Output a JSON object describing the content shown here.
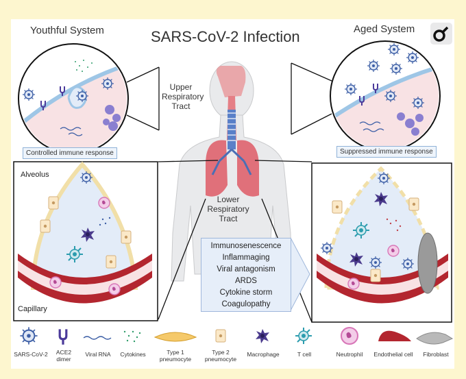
{
  "title": "SARS-CoV-2 Infection",
  "youthful": {
    "header": "Youthful System",
    "response": "Controlled immune response"
  },
  "aged": {
    "header": "Aged System",
    "response": "Suppressed immune response"
  },
  "upper_tract": [
    "Upper",
    "Respiratory",
    "Tract"
  ],
  "lower_tract": [
    "Lower",
    "Respiratory",
    "Tract"
  ],
  "alveolus_label": "Alveolus",
  "capillary_label": "Capillary",
  "effects": [
    "Immunosenescence",
    "Inflammaging",
    "Viral antagonism",
    "ARDS",
    "Cytokine storm",
    "Coagulopathy"
  ],
  "legend": [
    {
      "icon": "virus-icon",
      "label": [
        "SARS-CoV-2"
      ]
    },
    {
      "icon": "ace2-icon",
      "label": [
        "ACE2",
        "dimer"
      ]
    },
    {
      "icon": "viral-rna-icon",
      "label": [
        "Viral RNA"
      ]
    },
    {
      "icon": "cytokines-icon",
      "label": [
        "Cytokines"
      ]
    },
    {
      "icon": "type1-pneumocyte-icon",
      "label": [
        "Type 1",
        "pneumocyte"
      ]
    },
    {
      "icon": "type2-pneumocyte-icon",
      "label": [
        "Type 2",
        "pneumocyte"
      ]
    },
    {
      "icon": "macrophage-icon",
      "label": [
        "Macrophage"
      ]
    },
    {
      "icon": "tcell-icon",
      "label": [
        "T cell"
      ]
    },
    {
      "icon": "neutrophil-icon",
      "label": [
        "Neutrophil"
      ]
    },
    {
      "icon": "endothelial-icon",
      "label": [
        "Endothelial cell"
      ]
    },
    {
      "icon": "fibroblast-icon",
      "label": [
        "Fibroblast"
      ]
    }
  ],
  "colors": {
    "background": "#fdf6cf",
    "virus": "#3d5fa6",
    "capillary": "#b3262f",
    "alveolus": "#e3ecf8",
    "tissue": "#f8e2e4",
    "macrophage": "#4a3a8c",
    "tcell": "#2b9cae",
    "neutrophil": "#d877b8"
  }
}
